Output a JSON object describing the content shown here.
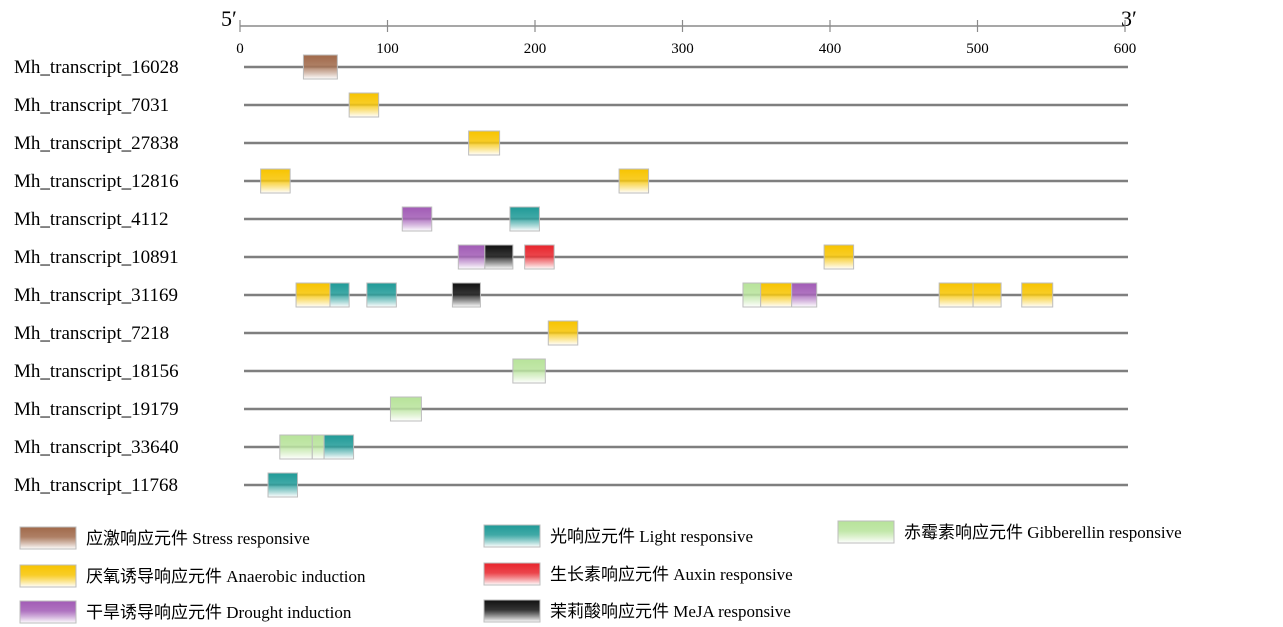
{
  "axis": {
    "start_label": "5′",
    "end_label": "3′",
    "min": 0,
    "max": 600,
    "ticks": [
      0,
      100,
      200,
      300,
      400,
      500,
      600
    ]
  },
  "element_types": [
    {
      "key": "stress",
      "label": "应激响应元件 Stress responsive",
      "color": "#a0694a"
    },
    {
      "key": "light",
      "label": "光响应元件 Light responsive",
      "color": "#1f9a97"
    },
    {
      "key": "gibberellin",
      "label": "赤霉素响应元件 Gibberellin responsive",
      "color": "#b7e39a"
    },
    {
      "key": "anaerobic",
      "label": "厌氧诱导响应元件 Anaerobic induction",
      "color": "#f7c400"
    },
    {
      "key": "auxin",
      "label": "生长素响应元件 Auxin responsive",
      "color": "#e8242c"
    },
    {
      "key": "drought",
      "label": "干旱诱导响应元件 Drought induction",
      "color": "#a15bb5"
    },
    {
      "key": "meja",
      "label": "茉莉酸响应元件 MeJA responsive",
      "color": "#111111"
    }
  ],
  "transcripts": [
    {
      "name": "Mh_transcript_16028",
      "elements": [
        {
          "type": "stress",
          "start": 43,
          "end": 66
        }
      ]
    },
    {
      "name": "Mh_transcript_7031",
      "elements": [
        {
          "type": "anaerobic",
          "start": 74,
          "end": 94
        }
      ]
    },
    {
      "name": "Mh_transcript_27838",
      "elements": [
        {
          "type": "anaerobic",
          "start": 155,
          "end": 176
        }
      ]
    },
    {
      "name": "Mh_transcript_12816",
      "elements": [
        {
          "type": "anaerobic",
          "start": 14,
          "end": 34
        },
        {
          "type": "anaerobic",
          "start": 257,
          "end": 277
        }
      ]
    },
    {
      "name": "Mh_transcript_4112",
      "elements": [
        {
          "type": "drought",
          "start": 110,
          "end": 130
        },
        {
          "type": "light",
          "start": 183,
          "end": 203
        }
      ]
    },
    {
      "name": "Mh_transcript_10891",
      "elements": [
        {
          "type": "drought",
          "start": 148,
          "end": 166
        },
        {
          "type": "meja",
          "start": 166,
          "end": 185
        },
        {
          "type": "auxin",
          "start": 193,
          "end": 213
        },
        {
          "type": "anaerobic",
          "start": 396,
          "end": 416
        }
      ]
    },
    {
      "name": "Mh_transcript_31169",
      "elements": [
        {
          "type": "anaerobic",
          "start": 38,
          "end": 61
        },
        {
          "type": "light",
          "start": 61,
          "end": 74
        },
        {
          "type": "light",
          "start": 86,
          "end": 106
        },
        {
          "type": "meja",
          "start": 144,
          "end": 163
        },
        {
          "type": "gibberellin",
          "start": 341,
          "end": 353
        },
        {
          "type": "anaerobic",
          "start": 353,
          "end": 374
        },
        {
          "type": "drought",
          "start": 374,
          "end": 391
        },
        {
          "type": "anaerobic",
          "start": 474,
          "end": 497
        },
        {
          "type": "anaerobic",
          "start": 497,
          "end": 516
        },
        {
          "type": "anaerobic",
          "start": 530,
          "end": 551
        }
      ]
    },
    {
      "name": "Mh_transcript_7218",
      "elements": [
        {
          "type": "anaerobic",
          "start": 209,
          "end": 229
        }
      ]
    },
    {
      "name": "Mh_transcript_18156",
      "elements": [
        {
          "type": "gibberellin",
          "start": 185,
          "end": 207
        }
      ]
    },
    {
      "name": "Mh_transcript_19179",
      "elements": [
        {
          "type": "gibberellin",
          "start": 102,
          "end": 123
        }
      ]
    },
    {
      "name": "Mh_transcript_33640",
      "elements": [
        {
          "type": "gibberellin",
          "start": 27,
          "end": 49
        },
        {
          "type": "gibberellin",
          "start": 49,
          "end": 57
        },
        {
          "type": "light",
          "start": 57,
          "end": 77
        }
      ]
    },
    {
      "name": "Mh_transcript_11768",
      "elements": [
        {
          "type": "light",
          "start": 19,
          "end": 39
        }
      ]
    }
  ]
}
